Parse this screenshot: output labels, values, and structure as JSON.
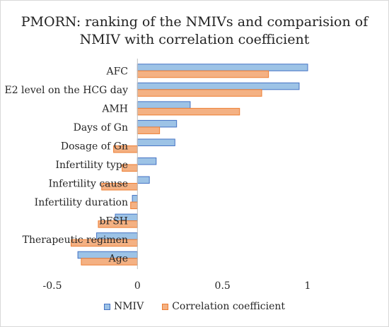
{
  "chart_data": {
    "type": "bar",
    "orientation": "horizontal",
    "title": "PMORN: ranking of the NMIVs and comparision of NMIV with correlation coefficient",
    "title_lines": [
      "PMORN: ranking of the NMIVs and comparision of",
      "NMIV with correlation coefficient"
    ],
    "categories": [
      "AFC",
      "E2 level on the HCG day",
      "AMH",
      "Days of Gn",
      "Dosage of Gn",
      "Infertility type",
      "Infertility cause",
      "Infertility duration",
      "bFSH",
      "Therapeutic regimen",
      "Age"
    ],
    "series": [
      {
        "name": "NMIV",
        "color": "#9dc3e6",
        "values": [
          1.0,
          0.95,
          0.31,
          0.23,
          0.22,
          0.11,
          0.07,
          -0.03,
          -0.13,
          -0.24,
          -0.35
        ]
      },
      {
        "name": "Correlation  coefficient",
        "color": "#f4b183",
        "values": [
          0.77,
          0.73,
          0.6,
          0.13,
          -0.14,
          -0.09,
          -0.21,
          -0.04,
          -0.23,
          -0.39,
          -0.33
        ]
      }
    ],
    "xlim": [
      -0.5,
      1.0
    ],
    "xticks": [
      "-0.5",
      "0",
      "0.5",
      "1"
    ],
    "xlabel": "",
    "ylabel": "",
    "grid": false,
    "legend_position": "bottom"
  }
}
